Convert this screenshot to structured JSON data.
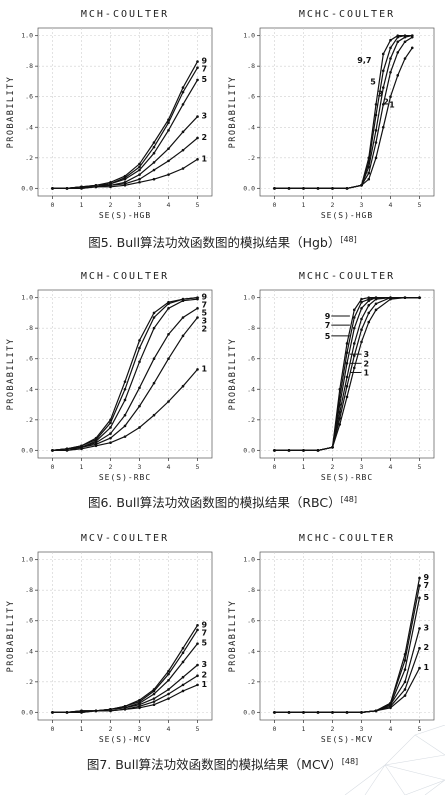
{
  "captions": [
    {
      "text": "图5. Bull算法功效函数图的模拟结果（Hgb）",
      "ref": "[48]"
    },
    {
      "text": "图6. Bull算法功效函数图的模拟结果（RBC）",
      "ref": "[48]"
    },
    {
      "text": "图7. Bull算法功效函数图的模拟结果（MCV）",
      "ref": "[48]"
    }
  ],
  "chart_data": [
    {
      "type": "line",
      "title": "MCH-COULTER",
      "xlabel": "SE(S)-HGB",
      "ylabel": "PROBABILITY",
      "xlim": [
        -0.5,
        5.5
      ],
      "ylim": [
        -0.05,
        1.05
      ],
      "xticks": [
        "0",
        "1",
        "2",
        "3",
        "4",
        "5"
      ],
      "yticks": [
        "0.0",
        ".2",
        ".4",
        ".6",
        ".8",
        "1.0"
      ],
      "grid": true,
      "x": [
        0,
        0.5,
        1,
        1.5,
        2,
        2.5,
        3,
        3.5,
        4,
        4.5,
        5
      ],
      "series": [
        {
          "name": "9",
          "values": [
            0,
            0,
            0.01,
            0.02,
            0.04,
            0.08,
            0.16,
            0.3,
            0.45,
            0.66,
            0.83
          ]
        },
        {
          "name": "7",
          "values": [
            0,
            0,
            0.01,
            0.02,
            0.03,
            0.07,
            0.14,
            0.27,
            0.43,
            0.63,
            0.79
          ]
        },
        {
          "name": "5",
          "values": [
            0,
            0,
            0.01,
            0.01,
            0.03,
            0.06,
            0.12,
            0.23,
            0.38,
            0.55,
            0.71
          ]
        },
        {
          "name": "3",
          "values": [
            0,
            0,
            0.01,
            0.01,
            0.02,
            0.04,
            0.09,
            0.17,
            0.26,
            0.37,
            0.47
          ]
        },
        {
          "name": "2",
          "values": [
            0,
            0,
            0,
            0.01,
            0.02,
            0.03,
            0.06,
            0.12,
            0.18,
            0.25,
            0.33
          ]
        },
        {
          "name": "1",
          "values": [
            0,
            0,
            0,
            0.01,
            0.01,
            0.02,
            0.04,
            0.06,
            0.09,
            0.13,
            0.19
          ]
        }
      ]
    },
    {
      "type": "line",
      "title": "MCHC-COULTER",
      "xlabel": "SE(S)-HGB",
      "ylabel": "PROBABILITY",
      "xlim": [
        -0.5,
        5.5
      ],
      "ylim": [
        -0.05,
        1.05
      ],
      "xticks": [
        "0",
        "1",
        "2",
        "3",
        "4",
        "5"
      ],
      "yticks": [
        "0.0",
        ".2",
        ".4",
        ".6",
        ".8",
        "1.0"
      ],
      "grid": true,
      "x": [
        0,
        0.5,
        1,
        1.5,
        2,
        2.5,
        3,
        3.25,
        3.5,
        3.75,
        4,
        4.25,
        4.5,
        4.75
      ],
      "series": [
        {
          "name": "9,7",
          "values": [
            0,
            0,
            0,
            0,
            0,
            0,
            0.02,
            0.2,
            0.55,
            0.88,
            0.97,
            1.0,
            1.0,
            1.0
          ]
        },
        {
          "name": "5",
          "values": [
            0,
            0,
            0,
            0,
            0,
            0,
            0.02,
            0.17,
            0.48,
            0.77,
            0.92,
            0.99,
            1.0,
            1.0
          ]
        },
        {
          "name": "3",
          "values": [
            0,
            0,
            0,
            0,
            0,
            0,
            0.02,
            0.14,
            0.38,
            0.66,
            0.85,
            0.96,
            0.99,
            1.0
          ]
        },
        {
          "name": "2",
          "values": [
            0,
            0,
            0,
            0,
            0,
            0,
            0.02,
            0.1,
            0.3,
            0.55,
            0.76,
            0.89,
            0.96,
            0.99
          ]
        },
        {
          "name": "1",
          "values": [
            0,
            0,
            0,
            0,
            0,
            0,
            0.02,
            0.06,
            0.2,
            0.4,
            0.6,
            0.74,
            0.85,
            0.92
          ]
        }
      ]
    },
    {
      "type": "line",
      "title": "MCH-COULTER",
      "xlabel": "SE(S)-RBC",
      "ylabel": "PROBABILITY",
      "xlim": [
        -0.5,
        5.5
      ],
      "ylim": [
        -0.05,
        1.05
      ],
      "xticks": [
        "0",
        "1",
        "2",
        "3",
        "4",
        "5"
      ],
      "yticks": [
        "0.0",
        ".2",
        ".4",
        ".6",
        ".8",
        "1.0"
      ],
      "grid": true,
      "x": [
        0,
        0.5,
        1,
        1.5,
        2,
        2.5,
        3,
        3.5,
        4,
        4.5,
        5
      ],
      "series": [
        {
          "name": "9",
          "values": [
            0,
            0.01,
            0.03,
            0.08,
            0.2,
            0.45,
            0.72,
            0.9,
            0.97,
            0.99,
            1.0
          ]
        },
        {
          "name": "7",
          "values": [
            0,
            0.01,
            0.03,
            0.07,
            0.18,
            0.4,
            0.67,
            0.87,
            0.96,
            0.99,
            1.0
          ]
        },
        {
          "name": "5",
          "values": [
            0,
            0.01,
            0.02,
            0.06,
            0.15,
            0.33,
            0.58,
            0.8,
            0.93,
            0.98,
            0.99
          ]
        },
        {
          "name": "3",
          "values": [
            0,
            0.01,
            0.02,
            0.05,
            0.11,
            0.23,
            0.41,
            0.6,
            0.76,
            0.87,
            0.93
          ]
        },
        {
          "name": "2",
          "values": [
            0,
            0,
            0.02,
            0.04,
            0.08,
            0.16,
            0.29,
            0.44,
            0.6,
            0.75,
            0.87
          ]
        },
        {
          "name": "1",
          "values": [
            0,
            0,
            0.01,
            0.03,
            0.05,
            0.09,
            0.15,
            0.23,
            0.32,
            0.42,
            0.53
          ]
        }
      ]
    },
    {
      "type": "line",
      "title": "MCHC-COULTER",
      "xlabel": "SE(S)-RBC",
      "ylabel": "PROBABILITY",
      "xlim": [
        -0.5,
        5.5
      ],
      "ylim": [
        -0.05,
        1.05
      ],
      "xticks": [
        "0",
        "1",
        "2",
        "3",
        "4",
        "5"
      ],
      "yticks": [
        "0.0",
        ".2",
        ".4",
        ".6",
        ".8",
        "1.0"
      ],
      "grid": true,
      "x": [
        0,
        0.5,
        1,
        1.5,
        2,
        2.25,
        2.5,
        2.75,
        3,
        3.25,
        3.5,
        4,
        4.5,
        5
      ],
      "series": [
        {
          "name": "9",
          "values": [
            0,
            0,
            0,
            0,
            0.02,
            0.4,
            0.7,
            0.92,
            0.99,
            1.0,
            1.0,
            1.0,
            1.0,
            1.0
          ]
        },
        {
          "name": "7",
          "values": [
            0,
            0,
            0,
            0,
            0.02,
            0.35,
            0.64,
            0.87,
            0.97,
            0.99,
            1.0,
            1.0,
            1.0,
            1.0
          ]
        },
        {
          "name": "5",
          "values": [
            0,
            0,
            0,
            0,
            0.02,
            0.3,
            0.57,
            0.8,
            0.93,
            0.98,
            1.0,
            1.0,
            1.0,
            1.0
          ]
        },
        {
          "name": "3",
          "values": [
            0,
            0,
            0,
            0,
            0.02,
            0.25,
            0.48,
            0.7,
            0.86,
            0.95,
            0.99,
            1.0,
            1.0,
            1.0
          ]
        },
        {
          "name": "2",
          "values": [
            0,
            0,
            0,
            0,
            0.02,
            0.21,
            0.42,
            0.62,
            0.79,
            0.9,
            0.96,
            1.0,
            1.0,
            1.0
          ]
        },
        {
          "name": "1",
          "values": [
            0,
            0,
            0,
            0,
            0.02,
            0.17,
            0.35,
            0.54,
            0.71,
            0.84,
            0.92,
            0.99,
            1.0,
            1.0
          ]
        }
      ]
    },
    {
      "type": "line",
      "title": "MCV-COULTER",
      "xlabel": "SE(S)-MCV",
      "ylabel": "PROBABILITY",
      "xlim": [
        -0.5,
        5.5
      ],
      "ylim": [
        -0.05,
        1.05
      ],
      "xticks": [
        "0",
        "1",
        "2",
        "3",
        "4",
        "5"
      ],
      "yticks": [
        "0.0",
        ".2",
        ".4",
        ".6",
        ".8",
        "1.0"
      ],
      "grid": true,
      "x": [
        0,
        0.5,
        1,
        1.5,
        2,
        2.5,
        3,
        3.5,
        4,
        4.5,
        5
      ],
      "series": [
        {
          "name": "9",
          "values": [
            0,
            0,
            0.01,
            0.01,
            0.02,
            0.04,
            0.08,
            0.15,
            0.27,
            0.42,
            0.57
          ]
        },
        {
          "name": "7",
          "values": [
            0,
            0,
            0.01,
            0.01,
            0.02,
            0.04,
            0.07,
            0.14,
            0.25,
            0.39,
            0.54
          ]
        },
        {
          "name": "5",
          "values": [
            0,
            0,
            0.01,
            0.01,
            0.02,
            0.03,
            0.06,
            0.12,
            0.21,
            0.33,
            0.45
          ]
        },
        {
          "name": "3",
          "values": [
            0,
            0,
            0,
            0.01,
            0.02,
            0.03,
            0.05,
            0.09,
            0.15,
            0.23,
            0.31
          ]
        },
        {
          "name": "2",
          "values": [
            0,
            0,
            0,
            0.01,
            0.01,
            0.02,
            0.04,
            0.07,
            0.12,
            0.18,
            0.24
          ]
        },
        {
          "name": "1",
          "values": [
            0,
            0,
            0,
            0.01,
            0.01,
            0.02,
            0.03,
            0.05,
            0.09,
            0.14,
            0.18
          ]
        }
      ]
    },
    {
      "type": "line",
      "title": "MCHC-COULTER",
      "xlabel": "SE(S)-MCV",
      "ylabel": "PROBABILITY",
      "xlim": [
        -0.5,
        5.5
      ],
      "ylim": [
        -0.05,
        1.05
      ],
      "xticks": [
        "0",
        "1",
        "2",
        "3",
        "4",
        "5"
      ],
      "yticks": [
        "0.0",
        ".2",
        ".4",
        ".6",
        ".8",
        "1.0"
      ],
      "grid": true,
      "x": [
        0,
        0.5,
        1,
        1.5,
        2,
        2.5,
        3,
        3.5,
        4,
        4.5,
        5
      ],
      "series": [
        {
          "name": "9",
          "values": [
            0,
            0,
            0,
            0,
            0,
            0,
            0,
            0.01,
            0.06,
            0.38,
            0.88
          ]
        },
        {
          "name": "7",
          "values": [
            0,
            0,
            0,
            0,
            0,
            0,
            0,
            0.01,
            0.06,
            0.34,
            0.83
          ]
        },
        {
          "name": "5",
          "values": [
            0,
            0,
            0,
            0,
            0,
            0,
            0,
            0.01,
            0.05,
            0.28,
            0.75
          ]
        },
        {
          "name": "3",
          "values": [
            0,
            0,
            0,
            0,
            0,
            0,
            0,
            0.01,
            0.05,
            0.2,
            0.55
          ]
        },
        {
          "name": "2",
          "values": [
            0,
            0,
            0,
            0,
            0,
            0,
            0,
            0.01,
            0.04,
            0.15,
            0.42
          ]
        },
        {
          "name": "1",
          "values": [
            0,
            0,
            0,
            0,
            0,
            0,
            0,
            0.01,
            0.03,
            0.11,
            0.29
          ]
        }
      ]
    }
  ]
}
